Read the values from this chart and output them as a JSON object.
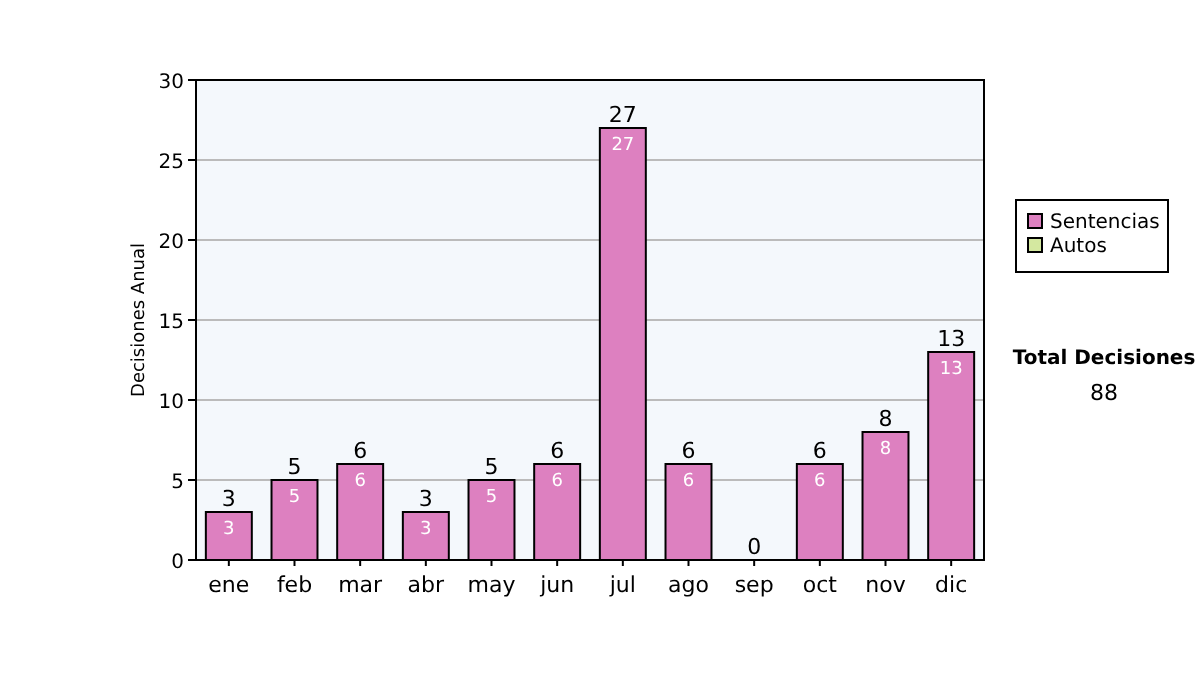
{
  "chart_data": {
    "type": "bar",
    "stacked": true,
    "ylabel": "Decisiones Anual",
    "categories": [
      "ene",
      "feb",
      "mar",
      "abr",
      "may",
      "jun",
      "jul",
      "ago",
      "sep",
      "oct",
      "nov",
      "dic"
    ],
    "series": [
      {
        "name": "Sentencias",
        "color": "#dd80c0",
        "values": [
          3,
          5,
          6,
          3,
          5,
          6,
          27,
          6,
          0,
          6,
          8,
          13
        ],
        "value_labels": [
          "3",
          "5",
          "6",
          "3",
          "5",
          "6",
          "27",
          "6",
          null,
          "6",
          "8",
          "13"
        ]
      },
      {
        "name": "Autos",
        "color": "#d4e8a0",
        "values": [
          0,
          0,
          0,
          0,
          0,
          0,
          0,
          0,
          0,
          0,
          0,
          0
        ]
      }
    ],
    "totals": [
      "3",
      "5",
      "6",
      "3",
      "5",
      "6",
      "27",
      "6",
      "0",
      "6",
      "8",
      "13"
    ],
    "ylim": [
      0,
      30
    ],
    "yticks": [
      0,
      5,
      10,
      15,
      20,
      25,
      30
    ],
    "grid": "y",
    "legend": "right",
    "annotations": [
      "Total Decisiones",
      "88"
    ]
  }
}
